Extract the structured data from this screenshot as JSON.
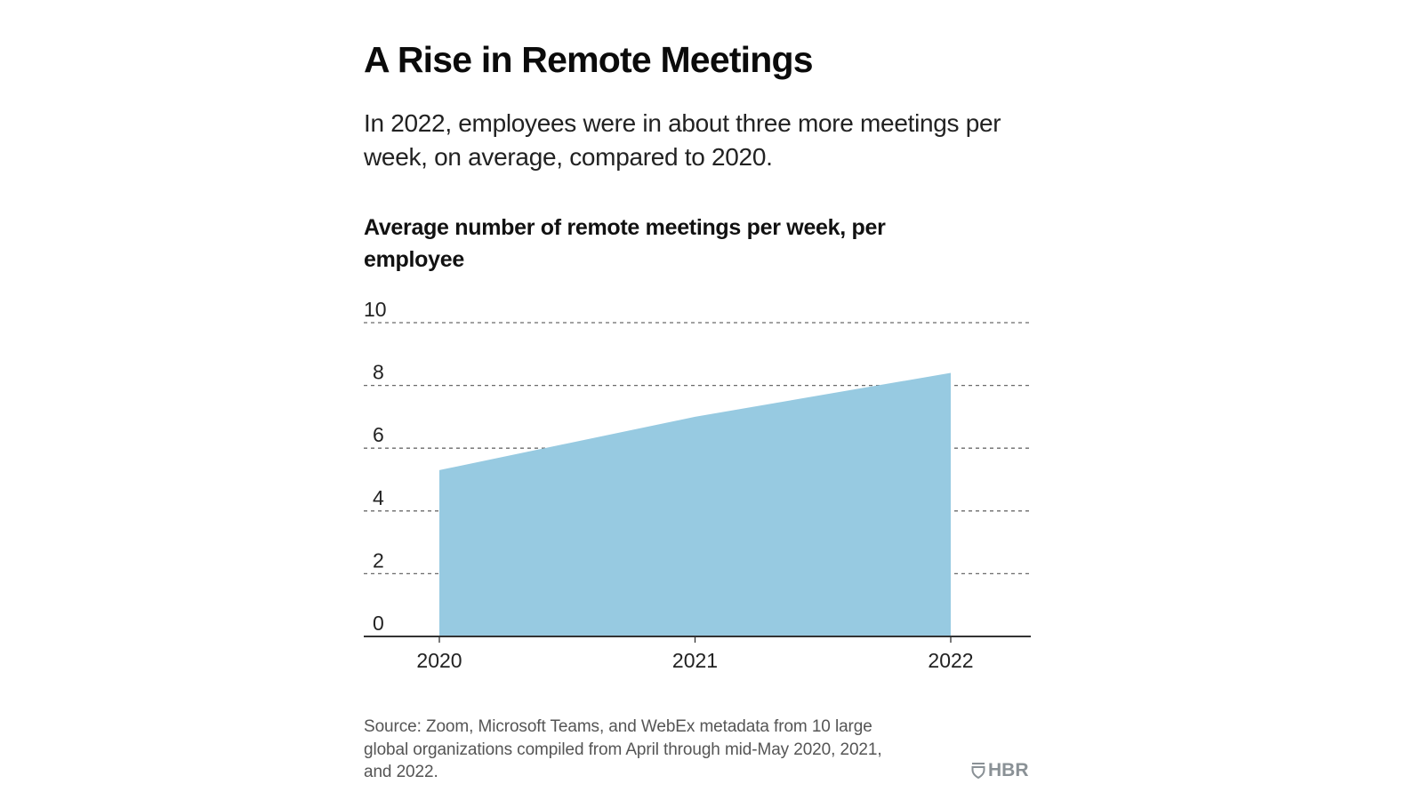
{
  "header": {
    "title": "A Rise in Remote Meetings",
    "subtitle": "In 2022, employees were in about three more meetings per week, on average, compared to 2020."
  },
  "footer": {
    "source": "Source: Zoom, Microsoft Teams, and WebEx metadata from 10 large global organizations compiled from April through mid-May 2020, 2021, and 2022.",
    "logo_text": "HBR",
    "logo_icon": "shield-icon"
  },
  "colors": {
    "area_fill": "#97cae1",
    "grid": "#6b6b6b",
    "axis": "#333333",
    "logo": "#8a9196"
  },
  "chart_data": {
    "type": "area",
    "title": "Average number of remote meetings per week, per employee",
    "xlabel": "",
    "ylabel": "",
    "x": [
      "2020",
      "2021",
      "2022"
    ],
    "series": [
      {
        "name": "Average remote meetings per week",
        "values": [
          5.3,
          7.0,
          8.4
        ]
      }
    ],
    "ylim": [
      0,
      10
    ],
    "yticks": [
      0,
      2,
      4,
      6,
      8,
      10
    ],
    "ytick_labels": [
      "0",
      "2",
      "4",
      "6",
      "8",
      "10"
    ],
    "xtick_labels": [
      "2020",
      "2021",
      "2022"
    ],
    "grid": true,
    "grid_style": "dashed-horizontal",
    "legend": "none"
  }
}
